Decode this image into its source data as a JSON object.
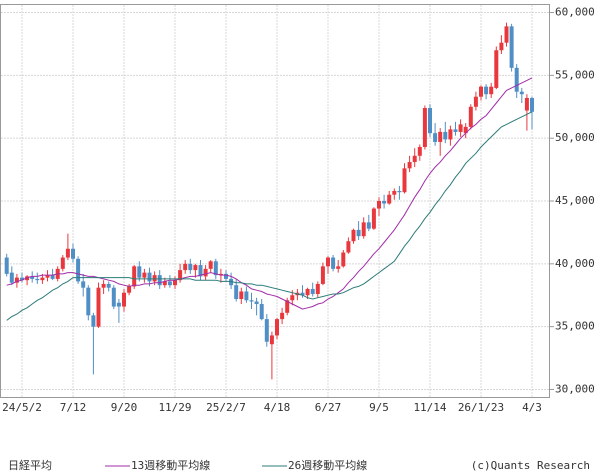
{
  "chart_data": {
    "type": "candlestick",
    "categories": [
      null,
      null,
      null,
      "24/5/2",
      null,
      null,
      null,
      null,
      null,
      null,
      null,
      null,
      null,
      "7/12",
      null,
      null,
      null,
      null,
      null,
      null,
      null,
      null,
      null,
      "9/20",
      null,
      null,
      null,
      null,
      null,
      null,
      null,
      null,
      null,
      "11/29",
      null,
      null,
      null,
      null,
      null,
      null,
      null,
      null,
      null,
      "25/2/7",
      null,
      null,
      null,
      null,
      null,
      null,
      null,
      null,
      null,
      "4/18",
      null,
      null,
      null,
      null,
      null,
      null,
      null,
      null,
      null,
      "6/27",
      null,
      null,
      null,
      null,
      null,
      null,
      null,
      null,
      null,
      "9/5",
      null,
      null,
      null,
      null,
      null,
      null,
      null,
      null,
      null,
      "11/14",
      null,
      null,
      null,
      null,
      null,
      null,
      null,
      null,
      null,
      "26/1/23",
      null,
      null,
      null,
      null,
      null,
      null,
      null,
      null,
      null,
      "4/3"
    ],
    "series": [
      {
        "name": "日経平均",
        "up_color": "#e8383d",
        "down_color": "#4f8fc6",
        "open": [
          40500,
          39300,
          38500,
          38900,
          38700,
          39000,
          38800,
          38700,
          38900,
          39100,
          38800,
          39600,
          40500,
          41200,
          40400,
          38600,
          38100,
          35900,
          35000,
          38100,
          38400,
          38100,
          36900,
          36600,
          37700,
          38200,
          39800,
          38900,
          39300,
          38600,
          39100,
          38300,
          38600,
          38300,
          38700,
          39500,
          40000,
          39500,
          39900,
          39000,
          39600,
          40200,
          39100,
          39200,
          38800,
          38300,
          37200,
          37800,
          37100,
          37000,
          36800,
          35600,
          33600,
          34300,
          35600,
          36100,
          37100,
          37500,
          37700,
          37500,
          38000,
          37600,
          38400,
          39800,
          40500,
          39600,
          39800,
          40900,
          41800,
          42700,
          42200,
          43300,
          42800,
          44400,
          45000,
          44800,
          45500,
          45800,
          45700,
          47600,
          48100,
          48600,
          49300,
          52400,
          50400,
          49700,
          50500,
          49900,
          50700,
          50500,
          50400,
          50900,
          52500,
          53300,
          54100,
          53500,
          54000,
          57000,
          57600,
          58900,
          55600,
          53700,
          52200,
          53200
        ],
        "high": [
          40800,
          39800,
          39200,
          39300,
          39100,
          39400,
          39300,
          39200,
          39500,
          39600,
          39800,
          40700,
          42400,
          41600,
          40600,
          39200,
          38300,
          36100,
          38500,
          38700,
          38600,
          38300,
          37200,
          38000,
          38400,
          39900,
          40200,
          39600,
          39700,
          39400,
          39500,
          38900,
          39100,
          39000,
          40000,
          40300,
          40400,
          40000,
          40300,
          39900,
          40300,
          40400,
          39600,
          39500,
          39300,
          38800,
          38100,
          38200,
          37700,
          37300,
          37200,
          36000,
          34600,
          35700,
          36500,
          37300,
          37900,
          38000,
          38300,
          38100,
          38500,
          38600,
          40100,
          40600,
          40700,
          40300,
          41100,
          42100,
          42800,
          43400,
          43700,
          43900,
          44500,
          45300,
          45500,
          45800,
          46000,
          46200,
          48000,
          48600,
          49200,
          49500,
          52600,
          52700,
          51200,
          50800,
          51300,
          51000,
          51300,
          51500,
          51200,
          52700,
          53700,
          54200,
          54300,
          54400,
          57300,
          58200,
          59200,
          59100,
          55900,
          54000,
          53500,
          53300
        ],
        "low": [
          39000,
          38300,
          38100,
          38500,
          38300,
          38500,
          38400,
          38400,
          38600,
          38700,
          38600,
          39400,
          40300,
          40100,
          38400,
          37400,
          35500,
          31200,
          34900,
          37600,
          37800,
          36400,
          35300,
          36200,
          37500,
          38000,
          38600,
          38500,
          38200,
          38300,
          38000,
          38100,
          38100,
          38000,
          38500,
          39200,
          39200,
          38900,
          38700,
          38700,
          39300,
          38800,
          38500,
          38600,
          38000,
          37000,
          36800,
          36900,
          36400,
          35900,
          35500,
          33400,
          30800,
          34000,
          35200,
          35900,
          36700,
          37100,
          37300,
          37200,
          37400,
          37300,
          38300,
          39200,
          39400,
          39300,
          39700,
          40800,
          41600,
          41900,
          42000,
          42600,
          42700,
          43800,
          44400,
          44700,
          45100,
          45100,
          45600,
          47300,
          47700,
          48200,
          49100,
          50100,
          49400,
          48600,
          49600,
          49400,
          50200,
          50100,
          50000,
          50700,
          52200,
          53000,
          53100,
          53200,
          53900,
          56700,
          57300,
          55300,
          53200,
          52800,
          50600,
          50700
        ],
        "close": [
          39200,
          38500,
          38900,
          38700,
          39000,
          38800,
          38700,
          38900,
          39100,
          38800,
          39600,
          40500,
          41200,
          40400,
          38600,
          38100,
          35900,
          35000,
          38100,
          38400,
          38100,
          36600,
          36600,
          37700,
          38200,
          39800,
          38900,
          39300,
          38600,
          39100,
          38300,
          38600,
          38300,
          38700,
          39500,
          40000,
          39500,
          39900,
          39000,
          39600,
          40200,
          39100,
          39200,
          38800,
          38300,
          37200,
          37800,
          37100,
          37000,
          36800,
          35600,
          33800,
          34300,
          35600,
          36100,
          37100,
          37500,
          37700,
          37500,
          38000,
          37600,
          38400,
          39800,
          40500,
          39600,
          39800,
          40900,
          41800,
          42700,
          42200,
          43300,
          42800,
          44400,
          45000,
          44800,
          45500,
          45800,
          45700,
          47600,
          48100,
          48600,
          49300,
          52400,
          50400,
          49700,
          50500,
          49900,
          50700,
          50500,
          51100,
          50900,
          52500,
          53300,
          54100,
          53500,
          54100,
          57000,
          57600,
          58900,
          55600,
          53700,
          53500,
          53200,
          52100
        ]
      },
      {
        "name": "13週移動平均線",
        "type": "line",
        "color": "#a12ca8",
        "values": [
          38300,
          38400,
          38600,
          38700,
          38900,
          39000,
          39000,
          39100,
          39100,
          39100,
          39200,
          39200,
          39300,
          39300,
          39200,
          39100,
          39000,
          39000,
          38900,
          38800,
          38700,
          38600,
          38400,
          38300,
          38200,
          38300,
          38300,
          38400,
          38400,
          38500,
          38500,
          38600,
          38700,
          38700,
          38800,
          38900,
          39000,
          39000,
          39100,
          39200,
          39300,
          39200,
          39100,
          39100,
          39000,
          38800,
          38500,
          38300,
          38000,
          37900,
          37800,
          37600,
          37500,
          37400,
          37200,
          37000,
          36800,
          36600,
          36400,
          36500,
          36600,
          36800,
          36900,
          37200,
          37400,
          37700,
          38000,
          38500,
          38900,
          39400,
          39800,
          40300,
          40800,
          41200,
          41700,
          42200,
          42700,
          43300,
          43900,
          44600,
          45300,
          45900,
          46600,
          47200,
          47700,
          48100,
          48600,
          49000,
          49500,
          50000,
          50400,
          50800,
          51100,
          51500,
          51800,
          52300,
          52800,
          53300,
          53800,
          54000,
          54200,
          54400,
          54600,
          54800
        ]
      },
      {
        "name": "26週移動平均線",
        "type": "line",
        "color": "#2b7b78",
        "values": [
          35500,
          35800,
          36000,
          36300,
          36500,
          36800,
          37100,
          37300,
          37600,
          37900,
          38100,
          38400,
          38600,
          38900,
          38900,
          38900,
          38900,
          38900,
          38900,
          38900,
          38900,
          38900,
          38900,
          38900,
          38900,
          38800,
          38800,
          38800,
          38800,
          38800,
          38800,
          38800,
          38800,
          38800,
          38800,
          38800,
          38800,
          38700,
          38700,
          38700,
          38700,
          38700,
          38600,
          38600,
          38600,
          38500,
          38500,
          38400,
          38400,
          38300,
          38300,
          38200,
          38100,
          38000,
          37900,
          37800,
          37700,
          37600,
          37500,
          37300,
          37200,
          37300,
          37400,
          37500,
          37600,
          37600,
          37700,
          37900,
          38100,
          38200,
          38400,
          38700,
          39000,
          39300,
          39600,
          39900,
          40200,
          40800,
          41400,
          41900,
          42500,
          43000,
          43600,
          44100,
          44700,
          45200,
          45800,
          46300,
          46900,
          47400,
          48000,
          48400,
          48800,
          49300,
          49700,
          50100,
          50500,
          50900,
          51100,
          51300,
          51500,
          51700,
          51900,
          52100
        ]
      }
    ],
    "ylim": [
      29400,
      60600
    ],
    "yticks": [
      {
        "value": 30000,
        "label": "30,000"
      },
      {
        "value": 35000,
        "label": "35,000"
      },
      {
        "value": 40000,
        "label": "40,000"
      },
      {
        "value": 45000,
        "label": "45,000"
      },
      {
        "value": 50000,
        "label": "50,000"
      },
      {
        "value": 55000,
        "label": "55,000"
      },
      {
        "value": 60000,
        "label": "60,000"
      }
    ],
    "grid": true,
    "credit": "(c)Quants Research"
  }
}
